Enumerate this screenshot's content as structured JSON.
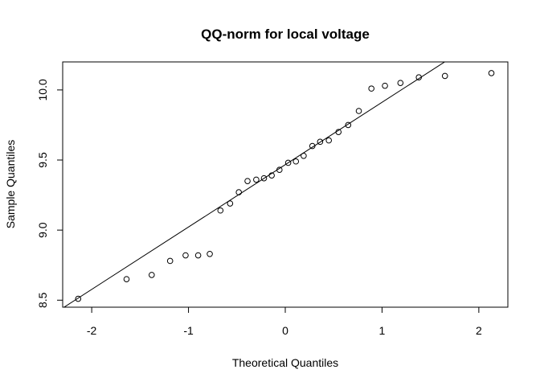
{
  "chart_data": {
    "type": "scatter",
    "title": "QQ-norm for local voltage",
    "xlabel": "Theoretical Quantiles",
    "ylabel": "Sample Quantiles",
    "xlim": [
      -2.3,
      2.3
    ],
    "ylim": [
      8.45,
      10.2
    ],
    "x_ticks": [
      -2,
      -1,
      0,
      1,
      2
    ],
    "x_tick_labels": [
      "-2",
      "-1",
      "0",
      "1",
      "2"
    ],
    "y_ticks": [
      8.5,
      9.0,
      9.5,
      10.0
    ],
    "y_tick_labels": [
      "8.5",
      "9.0",
      "9.5",
      "10.0"
    ],
    "grid": false,
    "legend": "none",
    "marker": "open-circle",
    "series": [
      {
        "x": [
          -2.14,
          -1.64,
          -1.38,
          -1.19,
          -1.03,
          -0.9,
          -0.78,
          -0.67,
          -0.57,
          -0.48,
          -0.39,
          -0.3,
          -0.22,
          -0.14,
          -0.06,
          0.03,
          0.11,
          0.19,
          0.28,
          0.36,
          0.45,
          0.55,
          0.65,
          0.76,
          0.89,
          1.03,
          1.19,
          1.38,
          1.65,
          2.13
        ],
        "y": [
          8.51,
          8.65,
          8.68,
          8.78,
          8.82,
          8.82,
          8.83,
          9.14,
          9.19,
          9.27,
          9.35,
          9.36,
          9.37,
          9.39,
          9.43,
          9.48,
          9.49,
          9.53,
          9.6,
          9.63,
          9.64,
          9.7,
          9.75,
          9.85,
          10.01,
          10.03,
          10.05,
          10.09,
          10.1,
          10.12
        ]
      }
    ],
    "reference_line": {
      "intercept": 9.467,
      "slope": 0.445
    }
  }
}
